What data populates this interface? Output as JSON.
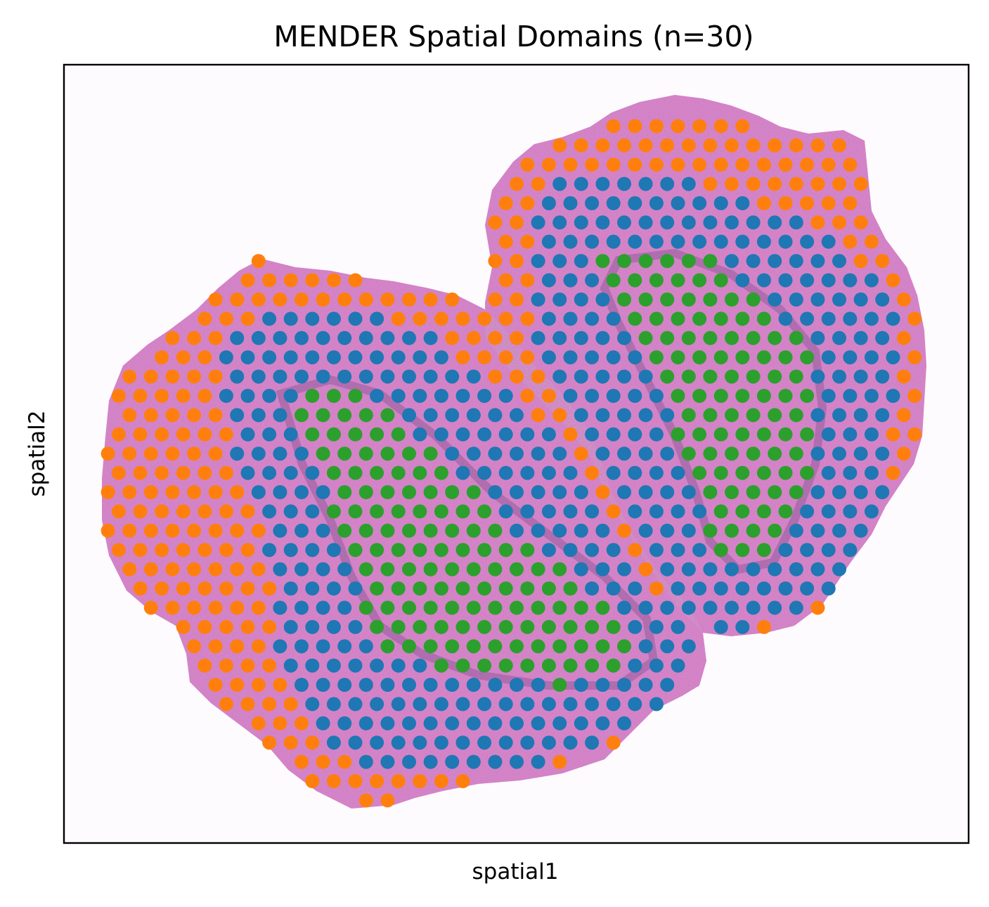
{
  "chart_data": {
    "type": "scatter",
    "title": "MENDER Spatial Domains (n=30)",
    "xlabel": "spatial1",
    "ylabel": "spatial2",
    "xticks": [],
    "yticks": [],
    "background": "H&E tissue image (two lobes, pink/purple staining)",
    "grid": false,
    "legend": "none",
    "colors": {
      "domain_orange": "#ff7f0e",
      "domain_blue": "#1f77b4",
      "domain_green": "#2ca02c",
      "tissue_pink": "#d877c9",
      "tissue_dark": "#7a3f8a"
    },
    "series": [
      {
        "color": "#ff7f0e",
        "role": "outer rim of tissue"
      },
      {
        "color": "#1f77b4",
        "role": "intermediate band"
      },
      {
        "color": "#2ca02c",
        "role": "inner core of each lobe"
      }
    ]
  }
}
